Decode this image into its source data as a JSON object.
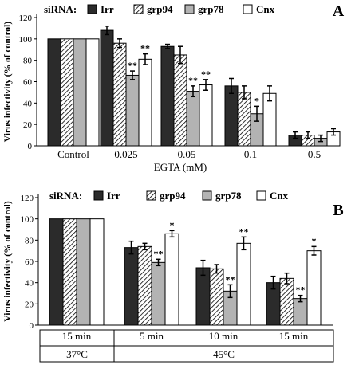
{
  "colors": {
    "irr": "#2b2b2b",
    "grp94": "#ffffff",
    "grp78": "#b3b3b3",
    "cnx": "#ffffff",
    "axis": "#000000"
  },
  "chart_data": [
    {
      "type": "bar",
      "panel_label": "A",
      "legend_prefix": "siRNA:",
      "legend_placement": "top",
      "series": [
        {
          "name": "Irr",
          "fill": "solid-dark",
          "values": [
            100,
            108,
            93,
            56,
            10
          ],
          "errors": [
            0,
            4,
            2,
            7,
            3
          ]
        },
        {
          "name": "grp94",
          "fill": "hatched",
          "values": [
            100,
            96,
            85,
            50,
            10
          ],
          "errors": [
            0,
            4,
            8,
            6,
            3
          ]
        },
        {
          "name": "grp78",
          "fill": "light-gray",
          "values": [
            100,
            66,
            51,
            30,
            7
          ],
          "errors": [
            0,
            4,
            5,
            7,
            3
          ]
        },
        {
          "name": "Cnx",
          "fill": "white",
          "values": [
            100,
            81,
            57,
            49,
            13
          ],
          "errors": [
            0,
            5,
            5,
            7,
            3
          ]
        }
      ],
      "categories": [
        "Control",
        "0.025",
        "0.05",
        "0.1",
        "0.5"
      ],
      "significance": [
        {
          "category": 1,
          "series": 2,
          "mark": "**"
        },
        {
          "category": 1,
          "series": 3,
          "mark": "**"
        },
        {
          "category": 2,
          "series": 2,
          "mark": "**"
        },
        {
          "category": 2,
          "series": 3,
          "mark": "**"
        },
        {
          "category": 3,
          "series": 2,
          "mark": "*"
        }
      ],
      "ylabel": "Virus infectivity (% of control)",
      "xlabel": "EGTA (mM)",
      "ylim": [
        0,
        120
      ],
      "yticks": [
        0,
        20,
        40,
        60,
        80,
        100,
        120
      ],
      "grid": false
    },
    {
      "type": "bar",
      "panel_label": "B",
      "legend_prefix": "siRNA:",
      "legend_placement": "top",
      "series": [
        {
          "name": "Irr",
          "fill": "solid-dark",
          "values": [
            100,
            73,
            54,
            40
          ],
          "errors": [
            0,
            6,
            7,
            6
          ]
        },
        {
          "name": "grp94",
          "fill": "hatched",
          "values": [
            100,
            74,
            53,
            44
          ],
          "errors": [
            0,
            3,
            4,
            5
          ]
        },
        {
          "name": "grp78",
          "fill": "light-gray",
          "values": [
            100,
            59,
            32,
            25
          ],
          "errors": [
            0,
            3,
            6,
            3
          ]
        },
        {
          "name": "Cnx",
          "fill": "white",
          "values": [
            100,
            86,
            77,
            70
          ],
          "errors": [
            0,
            3,
            6,
            4
          ]
        }
      ],
      "categories": [
        "15 min",
        "5 min",
        "10 min",
        "15 min"
      ],
      "group_labels": [
        {
          "label": "37°C",
          "from": 0,
          "to": 0
        },
        {
          "label": "45°C",
          "from": 1,
          "to": 3
        }
      ],
      "significance": [
        {
          "category": 1,
          "series": 2,
          "mark": "**"
        },
        {
          "category": 1,
          "series": 3,
          "mark": "*"
        },
        {
          "category": 2,
          "series": 2,
          "mark": "**"
        },
        {
          "category": 2,
          "series": 3,
          "mark": "**"
        },
        {
          "category": 3,
          "series": 2,
          "mark": "**"
        },
        {
          "category": 3,
          "series": 3,
          "mark": "*"
        }
      ],
      "ylabel": "Virus infectivity (% of control)",
      "xlabel": "",
      "ylim": [
        0,
        120
      ],
      "yticks": [
        0,
        20,
        40,
        60,
        80,
        100,
        120
      ],
      "grid": false
    }
  ]
}
